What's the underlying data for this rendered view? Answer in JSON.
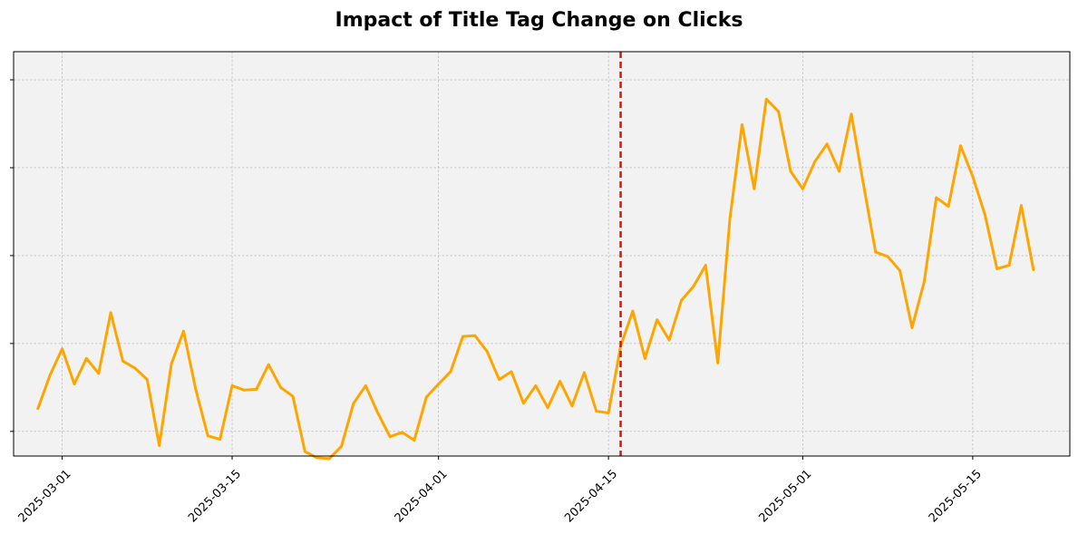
{
  "chart_data": {
    "type": "line",
    "title": "Impact of Title Tag Change on Clicks",
    "xlabel": "",
    "ylabel": "",
    "x_tick_labels": [
      "2025-03-01",
      "2025-03-15",
      "2025-04-01",
      "2025-04-15",
      "2025-05-01",
      "2025-05-15"
    ],
    "y_tick_labels_shown": false,
    "grid": true,
    "legend": "none",
    "colors": {
      "line": "#FFA500",
      "marker_line": "#E0140A",
      "plot_bg": "#F2F2F2",
      "grid": "#B0B0B0"
    },
    "xlim": [
      "2025-02-25",
      "2025-05-23"
    ],
    "ylim": [
      0.72,
      5.32
    ],
    "event_marker": {
      "x": "2025-04-16",
      "style": "dashed"
    },
    "series": [
      {
        "x": [
          "2025-02-27",
          "2025-02-28",
          "2025-03-01",
          "2025-03-02",
          "2025-03-03",
          "2025-03-04",
          "2025-03-05",
          "2025-03-06",
          "2025-03-07",
          "2025-03-08",
          "2025-03-09",
          "2025-03-10",
          "2025-03-11",
          "2025-03-12",
          "2025-03-13",
          "2025-03-14",
          "2025-03-15",
          "2025-03-16",
          "2025-03-17",
          "2025-03-18",
          "2025-03-19",
          "2025-03-20",
          "2025-03-21",
          "2025-03-22",
          "2025-03-23",
          "2025-03-24",
          "2025-03-25",
          "2025-03-26",
          "2025-03-27",
          "2025-03-28",
          "2025-03-29",
          "2025-03-30",
          "2025-03-31",
          "2025-04-01",
          "2025-04-02",
          "2025-04-03",
          "2025-04-04",
          "2025-04-05",
          "2025-04-06",
          "2025-04-07",
          "2025-04-08",
          "2025-04-09",
          "2025-04-10",
          "2025-04-11",
          "2025-04-12",
          "2025-04-13",
          "2025-04-14",
          "2025-04-15",
          "2025-04-16",
          "2025-04-17",
          "2025-04-18",
          "2025-04-19",
          "2025-04-20",
          "2025-04-21",
          "2025-04-22",
          "2025-04-23",
          "2025-04-24",
          "2025-04-25",
          "2025-04-26",
          "2025-04-27",
          "2025-04-28",
          "2025-04-29",
          "2025-04-30",
          "2025-05-01",
          "2025-05-02",
          "2025-05-03",
          "2025-05-04",
          "2025-05-05",
          "2025-05-06",
          "2025-05-07",
          "2025-05-08",
          "2025-05-09",
          "2025-05-10",
          "2025-05-11",
          "2025-05-12",
          "2025-05-13",
          "2025-05-14",
          "2025-05-15",
          "2025-05-16",
          "2025-05-17",
          "2025-05-18",
          "2025-05-19",
          "2025-05-20"
        ],
        "values": [
          1.26,
          1.64,
          1.94,
          1.54,
          1.83,
          1.66,
          2.35,
          1.8,
          1.72,
          1.59,
          0.84,
          1.77,
          2.14,
          1.48,
          0.95,
          0.91,
          1.52,
          1.47,
          1.48,
          1.76,
          1.5,
          1.4,
          0.77,
          0.7,
          0.69,
          0.83,
          1.32,
          1.52,
          1.21,
          0.94,
          0.99,
          0.9,
          1.39,
          1.54,
          1.68,
          2.08,
          2.09,
          1.91,
          1.59,
          1.68,
          1.32,
          1.52,
          1.27,
          1.57,
          1.29,
          1.67,
          1.23,
          1.21,
          1.97,
          2.37,
          1.83,
          2.27,
          2.04,
          2.49,
          2.65,
          2.89,
          1.78,
          3.42,
          4.49,
          3.76,
          4.78,
          4.64,
          3.96,
          3.76,
          4.07,
          4.27,
          3.96,
          4.61,
          3.81,
          3.04,
          2.99,
          2.83,
          2.18,
          2.7,
          3.66,
          3.56,
          4.25,
          3.9,
          3.47,
          2.85,
          2.89,
          3.57,
          2.84
        ]
      }
    ]
  }
}
